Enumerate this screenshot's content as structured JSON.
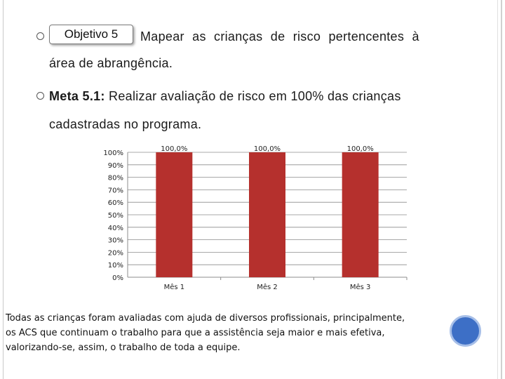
{
  "slide": {
    "objective_badge": "Objetivo 5",
    "objective_text_line1": "Mapear as crianças de risco pertencentes à",
    "objective_text_line2": "área de abrangência.",
    "meta_label": "Meta 5.1:",
    "meta_text_line1": " Realizar avaliação de risco em  100% das crianças",
    "meta_text_line2": "cadastradas no programa.",
    "caption_line1": "Todas as crianças foram avaliadas com ajuda de diversos profissionais, principalmente,",
    "caption_line2": "os ACS que continuam o trabalho para que a assistência seja maior e mais efetiva,",
    "caption_line3": "valorizando-se, assim, o trabalho de toda a equipe."
  },
  "colors": {
    "bar": "#b5302d",
    "accent_circle": "#3d6fc6"
  },
  "chart_data": {
    "type": "bar",
    "categories": [
      "Mês 1",
      "Mês 2",
      "Mês 3"
    ],
    "values": [
      100.0,
      100.0,
      100.0
    ],
    "data_labels": [
      "100,0%",
      "100,0%",
      "100,0%"
    ],
    "y_ticks": [
      "0%",
      "10%",
      "20%",
      "30%",
      "40%",
      "50%",
      "60%",
      "70%",
      "80%",
      "90%",
      "100%"
    ],
    "ylim": [
      0,
      100
    ],
    "grid": true
  }
}
